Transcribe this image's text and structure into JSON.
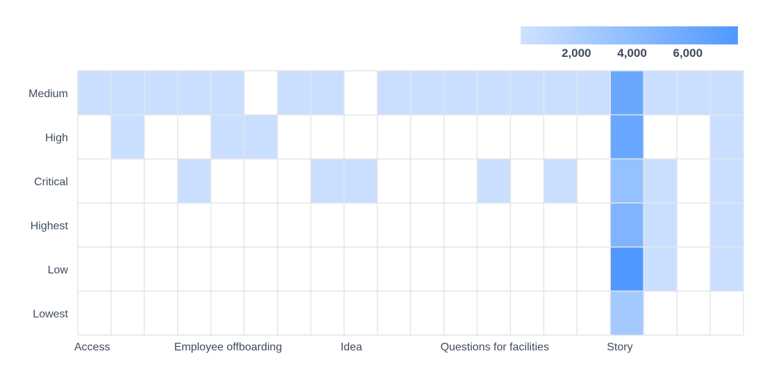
{
  "chart_data": {
    "type": "heatmap",
    "title": "",
    "xlabel": "",
    "ylabel": "",
    "y_categories": [
      "Medium",
      "High",
      "Critical",
      "Highest",
      "Low",
      "Lowest"
    ],
    "x_columns": 20,
    "x_tick_labels": [
      {
        "column": 0,
        "label": "Access"
      },
      {
        "column": 3,
        "label": "Employee offboarding"
      },
      {
        "column": 8,
        "label": "Idea"
      },
      {
        "column": 11,
        "label": "Questions for facilities"
      },
      {
        "column": 16,
        "label": "Story"
      }
    ],
    "values": [
      [
        300,
        300,
        300,
        300,
        300,
        0,
        300,
        300,
        0,
        300,
        300,
        300,
        300,
        300,
        300,
        300,
        6200,
        300,
        300,
        300
      ],
      [
        0,
        300,
        0,
        0,
        300,
        300,
        0,
        0,
        0,
        0,
        0,
        0,
        0,
        0,
        0,
        0,
        6300,
        0,
        0,
        300
      ],
      [
        0,
        0,
        0,
        300,
        0,
        0,
        0,
        300,
        300,
        0,
        0,
        0,
        300,
        0,
        300,
        0,
        3500,
        300,
        0,
        300
      ],
      [
        0,
        0,
        0,
        0,
        0,
        0,
        0,
        0,
        0,
        0,
        0,
        0,
        0,
        0,
        0,
        0,
        4800,
        300,
        0,
        300
      ],
      [
        0,
        0,
        0,
        0,
        0,
        0,
        0,
        0,
        0,
        0,
        0,
        0,
        0,
        0,
        0,
        0,
        7800,
        300,
        0,
        300
      ],
      [
        0,
        0,
        0,
        0,
        0,
        0,
        0,
        0,
        0,
        0,
        0,
        0,
        0,
        0,
        0,
        0,
        2600,
        0,
        0,
        0
      ]
    ],
    "color_scale": {
      "min": 0,
      "max": 7800,
      "low_color": "#cfe2ff",
      "high_color": "#4f98ff",
      "empty_color": "#ffffff",
      "ticks": [
        {
          "value": 2000,
          "label": "2,000"
        },
        {
          "value": 4000,
          "label": "4,000"
        },
        {
          "value": 6000,
          "label": "6,000"
        }
      ]
    },
    "grid": true,
    "legend": "top-right"
  }
}
